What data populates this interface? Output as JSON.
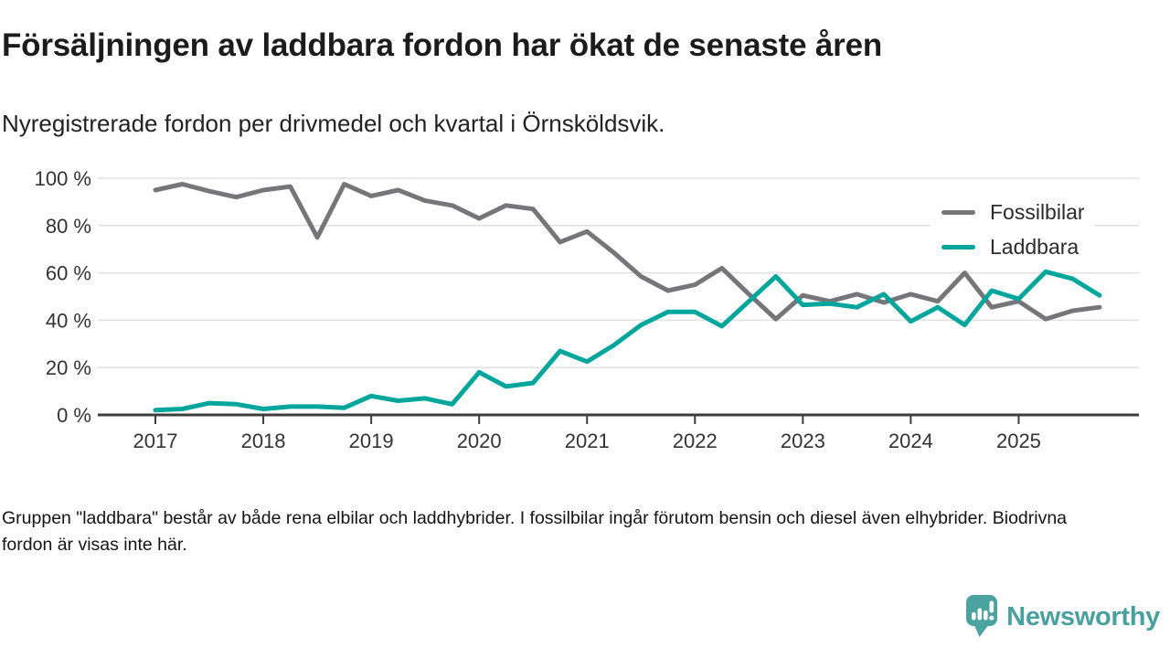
{
  "header": {
    "title": "Försäljningen av laddbara fordon har ökat de senaste åren",
    "subtitle": "Nyregistrerade fordon per drivmedel och kvartal i Örnsköldsvik."
  },
  "chart_data": {
    "type": "line",
    "unit": "percent",
    "frequency": "quarterly",
    "x": [
      "2017 Q1",
      "2017 Q2",
      "2017 Q3",
      "2017 Q4",
      "2018 Q1",
      "2018 Q2",
      "2018 Q3",
      "2018 Q4",
      "2019 Q1",
      "2019 Q2",
      "2019 Q3",
      "2019 Q4",
      "2020 Q1",
      "2020 Q2",
      "2020 Q3",
      "2020 Q4",
      "2021 Q1",
      "2021 Q2",
      "2021 Q3",
      "2021 Q4",
      "2022 Q1",
      "2022 Q2",
      "2022 Q3",
      "2022 Q4",
      "2023 Q1",
      "2023 Q2",
      "2023 Q3",
      "2023 Q4",
      "2024 Q1",
      "2024 Q2",
      "2024 Q3",
      "2024 Q4",
      "2025 Q1",
      "2025 Q2",
      "2025 Q3",
      "2025 Q4"
    ],
    "x_tick_labels": [
      "2017",
      "2018",
      "2019",
      "2020",
      "2021",
      "2022",
      "2023",
      "2024",
      "2025"
    ],
    "series": [
      {
        "name": "Fossilbilar",
        "color": "#76767a",
        "values": [
          95,
          97.5,
          94.5,
          92,
          95,
          96.5,
          75,
          97.5,
          92.5,
          95,
          90.5,
          88.5,
          83,
          88.5,
          87,
          73,
          77.5,
          68.5,
          58.5,
          52.5,
          55,
          62,
          51,
          40.5,
          50.5,
          48,
          51,
          47.5,
          51,
          48,
          60,
          45.5,
          48,
          40.5,
          44,
          45.5
        ]
      },
      {
        "name": "Laddbara",
        "color": "#00a69b",
        "values": [
          2,
          2.5,
          5,
          4.5,
          2.5,
          3.5,
          3.5,
          3,
          8,
          6,
          7,
          4.5,
          18,
          12,
          13.5,
          27,
          22.5,
          29.5,
          38,
          43.5,
          43.5,
          37.5,
          48,
          58.5,
          46.5,
          47,
          45.5,
          51,
          39.5,
          45.5,
          38,
          52.5,
          49,
          60.5,
          57.5,
          50.5
        ]
      }
    ],
    "ylim": [
      0,
      100
    ],
    "yticks": [
      0,
      20,
      40,
      60,
      80,
      100
    ],
    "ytick_labels": [
      "0 %",
      "20 %",
      "40 %",
      "60 %",
      "80 %",
      "100 %"
    ],
    "grid": "horizontal",
    "legend_position": "top-right",
    "colors": {
      "gridline": "#e1e1e1",
      "axis": "#3d3d3d",
      "tick_label": "#333333"
    }
  },
  "footer": {
    "note": "Gruppen \"laddbara\" består av både rena elbilar och laddhybrider. I fossilbilar ingår förutom bensin och diesel även elhybrider. Biodrivna fordon är visas inte här."
  },
  "branding": {
    "logo_text": "Newsworthy",
    "logo_color": "#4aa09d",
    "icon_color": "#4ba3a0",
    "icon": "newsworthy-speech-bubble-bar-chart-icon"
  }
}
